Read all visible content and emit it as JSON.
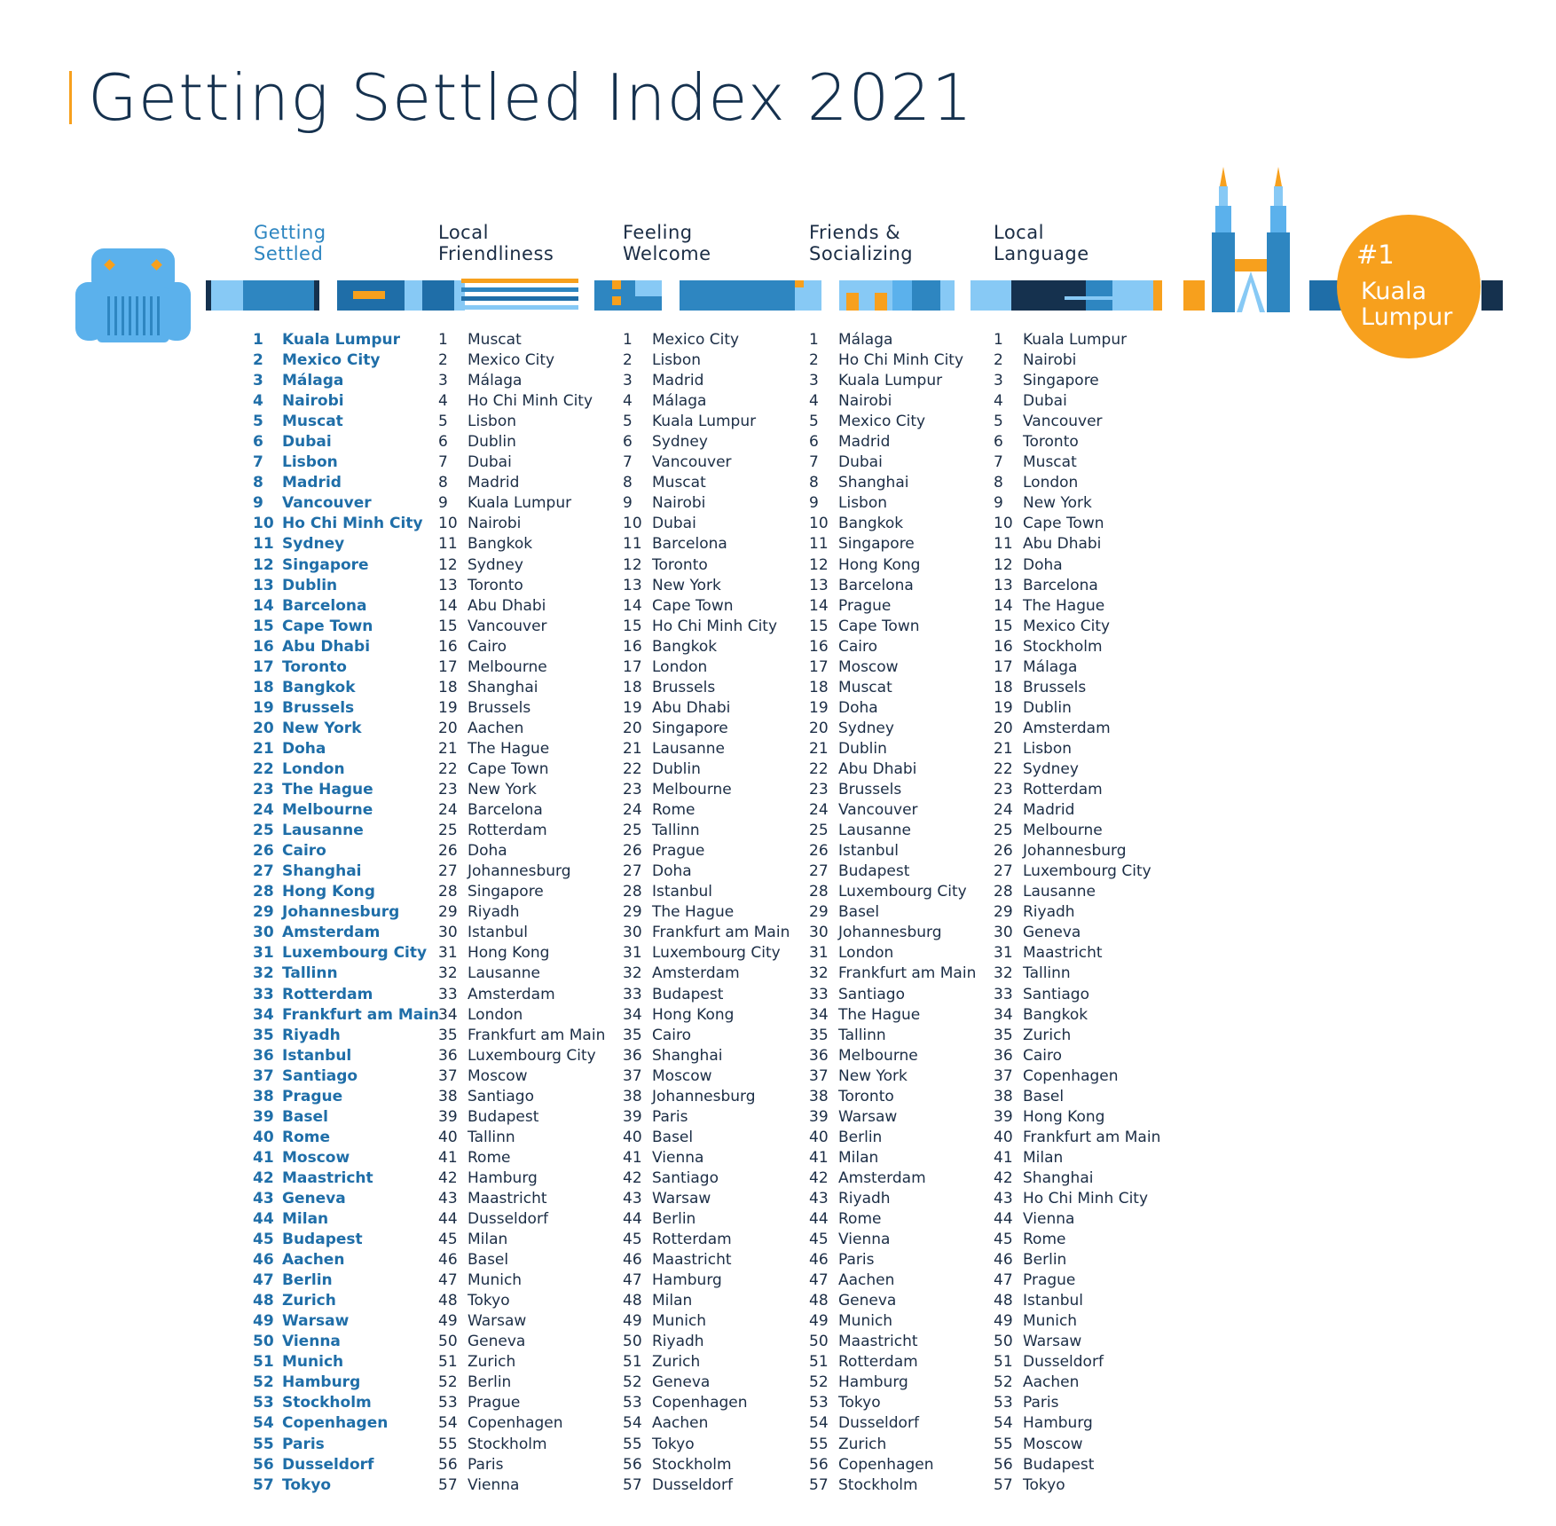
{
  "title": "Getting Settled Index 2021",
  "badge": {
    "rank": "#1",
    "city_line1": "Kuala",
    "city_line2": "Lumpur"
  },
  "colors": {
    "accent_orange": "#f7a01d",
    "blue_dark": "#1f6ea8",
    "blue_mid": "#2e86c1",
    "blue_light": "#87c9f5",
    "navy": "#15314e"
  },
  "icons": [
    "armchair-icon",
    "petronas-towers-icon"
  ],
  "columns": [
    {
      "title_line1": "Getting",
      "title_line2": "Settled",
      "items": [
        "Kuala Lumpur",
        "Mexico City",
        "Málaga",
        "Nairobi",
        "Muscat",
        "Dubai",
        "Lisbon",
        "Madrid",
        "Vancouver",
        "Ho Chi Minh City",
        "Sydney",
        "Singapore",
        "Dublin",
        "Barcelona",
        "Cape Town",
        "Abu Dhabi",
        "Toronto",
        "Bangkok",
        "Brussels",
        "New York",
        "Doha",
        "London",
        "The Hague",
        "Melbourne",
        "Lausanne",
        "Cairo",
        "Shanghai",
        "Hong Kong",
        "Johannesburg",
        "Amsterdam",
        "Luxembourg City",
        "Tallinn",
        "Rotterdam",
        "Frankfurt am Main",
        "Riyadh",
        "Istanbul",
        "Santiago",
        "Prague",
        "Basel",
        "Rome",
        "Moscow",
        "Maastricht",
        "Geneva",
        "Milan",
        "Budapest",
        "Aachen",
        "Berlin",
        "Zurich",
        "Warsaw",
        "Vienna",
        "Munich",
        "Hamburg",
        "Stockholm",
        "Copenhagen",
        "Paris",
        "Dusseldorf",
        "Tokyo"
      ]
    },
    {
      "title_line1": "Local",
      "title_line2": "Friendliness",
      "items": [
        "Muscat",
        "Mexico City",
        "Málaga",
        "Ho Chi Minh City",
        "Lisbon",
        "Dublin",
        "Dubai",
        "Madrid",
        "Kuala Lumpur",
        "Nairobi",
        "Bangkok",
        "Sydney",
        "Toronto",
        "Abu Dhabi",
        "Vancouver",
        "Cairo",
        "Melbourne",
        "Shanghai",
        "Brussels",
        "Aachen",
        "The Hague",
        "Cape Town",
        "New York",
        "Barcelona",
        "Rotterdam",
        "Doha",
        "Johannesburg",
        "Singapore",
        "Riyadh",
        "Istanbul",
        "Hong Kong",
        "Lausanne",
        "Amsterdam",
        "London",
        "Frankfurt am Main",
        "Luxembourg City",
        "Moscow",
        "Santiago",
        "Budapest",
        "Tallinn",
        "Rome",
        "Hamburg",
        "Maastricht",
        "Dusseldorf",
        "Milan",
        "Basel",
        "Munich",
        "Tokyo",
        "Warsaw",
        "Geneva",
        "Zurich",
        "Berlin",
        "Prague",
        "Copenhagen",
        "Stockholm",
        "Paris",
        "Vienna"
      ]
    },
    {
      "title_line1": "Feeling",
      "title_line2": "Welcome",
      "items": [
        "Mexico City",
        "Lisbon",
        "Madrid",
        "Málaga",
        "Kuala Lumpur",
        "Sydney",
        "Vancouver",
        "Muscat",
        "Nairobi",
        "Dubai",
        "Barcelona",
        "Toronto",
        "New York",
        "Cape Town",
        "Ho Chi Minh City",
        "Bangkok",
        "London",
        "Brussels",
        "Abu Dhabi",
        "Singapore",
        "Lausanne",
        "Dublin",
        "Melbourne",
        "Rome",
        "Tallinn",
        "Prague",
        "Doha",
        "Istanbul",
        "The Hague",
        "Frankfurt am Main",
        "Luxembourg City",
        "Amsterdam",
        "Budapest",
        "Hong Kong",
        "Cairo",
        "Shanghai",
        "Moscow",
        "Johannesburg",
        "Paris",
        "Basel",
        "Vienna",
        "Santiago",
        "Warsaw",
        "Berlin",
        "Rotterdam",
        "Maastricht",
        "Hamburg",
        "Milan",
        "Munich",
        "Riyadh",
        "Zurich",
        "Geneva",
        "Copenhagen",
        "Aachen",
        "Tokyo",
        "Stockholm",
        "Dusseldorf"
      ]
    },
    {
      "title_line1": "Friends &",
      "title_line2": "Socializing",
      "items": [
        "Málaga",
        "Ho Chi Minh City",
        "Kuala Lumpur",
        "Nairobi",
        "Mexico City",
        "Madrid",
        "Dubai",
        "Shanghai",
        "Lisbon",
        "Bangkok",
        "Singapore",
        "Hong Kong",
        "Barcelona",
        "Prague",
        "Cape Town",
        "Cairo",
        "Moscow",
        "Muscat",
        "Doha",
        "Sydney",
        "Dublin",
        "Abu Dhabi",
        "Brussels",
        "Vancouver",
        "Lausanne",
        "Istanbul",
        "Budapest",
        "Luxembourg City",
        "Basel",
        "Johannesburg",
        "London",
        "Frankfurt am Main",
        "Santiago",
        "The Hague",
        "Tallinn",
        "Melbourne",
        "New York",
        "Toronto",
        "Warsaw",
        "Berlin",
        "Milan",
        "Amsterdam",
        "Riyadh",
        "Rome",
        "Vienna",
        "Paris",
        "Aachen",
        "Geneva",
        "Munich",
        "Maastricht",
        "Rotterdam",
        "Hamburg",
        "Tokyo",
        "Dusseldorf",
        "Zurich",
        "Copenhagen",
        "Stockholm"
      ]
    },
    {
      "title_line1": "Local",
      "title_line2": "Language",
      "items": [
        "Kuala Lumpur",
        "Nairobi",
        "Singapore",
        "Dubai",
        "Vancouver",
        "Toronto",
        "Muscat",
        "London",
        "New York",
        "Cape Town",
        "Abu Dhabi",
        "Doha",
        "Barcelona",
        "The Hague",
        "Mexico City",
        "Stockholm",
        "Málaga",
        "Brussels",
        "Dublin",
        "Amsterdam",
        "Lisbon",
        "Sydney",
        "Rotterdam",
        "Madrid",
        "Melbourne",
        "Johannesburg",
        "Luxembourg City",
        "Lausanne",
        "Riyadh",
        "Geneva",
        "Maastricht",
        "Tallinn",
        "Santiago",
        "Bangkok",
        "Zurich",
        "Cairo",
        "Copenhagen",
        "Basel",
        "Hong Kong",
        "Frankfurt am Main",
        "Milan",
        "Shanghai",
        "Ho Chi Minh City",
        "Vienna",
        "Rome",
        "Berlin",
        "Prague",
        "Istanbul",
        "Munich",
        "Warsaw",
        "Dusseldorf",
        "Aachen",
        "Paris",
        "Hamburg",
        "Moscow",
        "Budapest",
        "Tokyo"
      ]
    }
  ]
}
